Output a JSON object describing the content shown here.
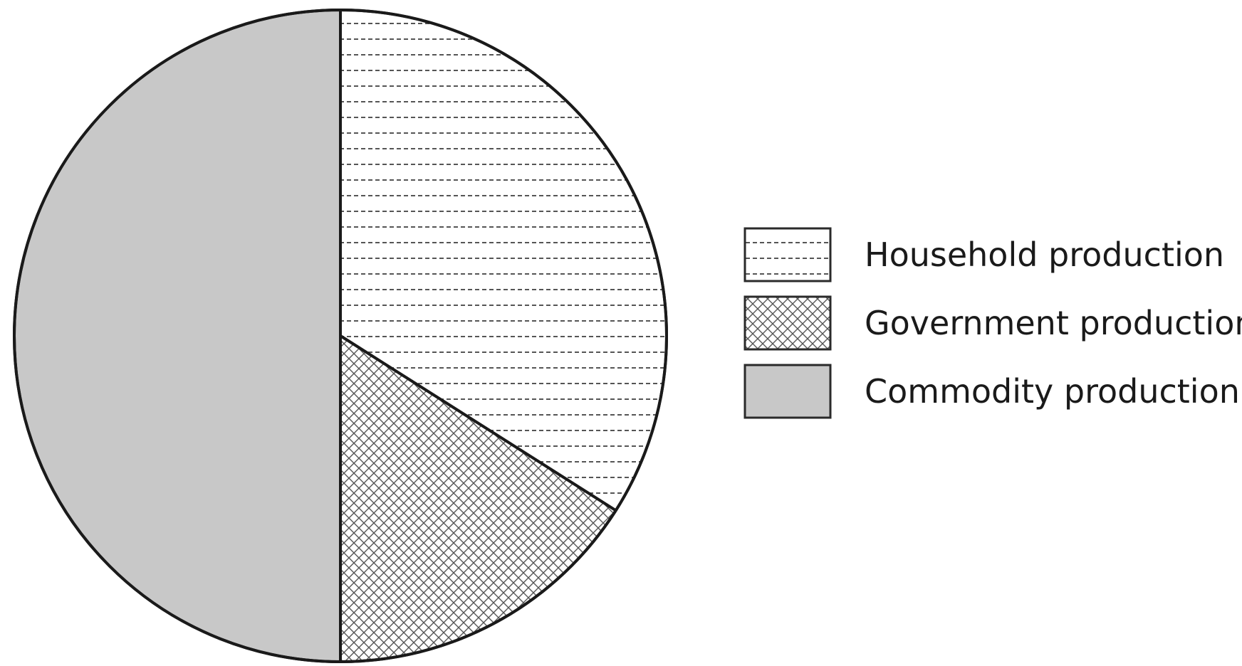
{
  "chart_data": {
    "type": "pie",
    "title": "",
    "start_angle": "12 o'clock",
    "direction": "clockwise",
    "slices": [
      {
        "label": "Household production",
        "value": 34,
        "pattern": "dotted-horizontal-lines",
        "color": "#ffffff"
      },
      {
        "label": "Government production",
        "value": 16,
        "pattern": "crosshatch",
        "color": "#ffffff"
      },
      {
        "label": "Commodity production",
        "value": 50,
        "pattern": "solid",
        "color": "#c8c8c8"
      }
    ],
    "legend": {
      "placement": "right",
      "entries": [
        "Household production",
        "Government production",
        "Commodity production"
      ]
    },
    "outline_color": "#1a1a1a"
  }
}
